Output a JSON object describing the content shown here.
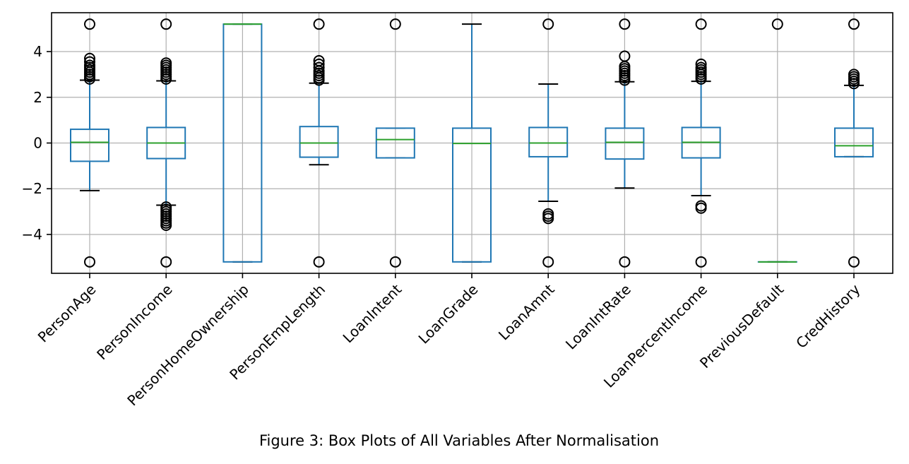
{
  "chart_data": {
    "type": "box",
    "title": "",
    "xlabel": "",
    "ylabel": "",
    "ylim": [
      -5.7,
      5.7
    ],
    "yticks": [
      -4,
      -2,
      0,
      2,
      4
    ],
    "ytick_labels": [
      "−4",
      "−2",
      "0",
      "2",
      "4"
    ],
    "grid": true,
    "colors": {
      "box": "#1f77b4",
      "median": "#2ca02c",
      "whisker_cap": "#000000",
      "grid": "#b0b0b0"
    },
    "categories": [
      "PersonAge",
      "PersonIncome",
      "PersonHomeOwnership",
      "PersonEmpLength",
      "LoanIntent",
      "LoanGrade",
      "LoanAmnt",
      "LoanIntRate",
      "LoanPercentIncome",
      "PreviousDefault",
      "CredHistory"
    ],
    "boxes": [
      {
        "q1": -0.8,
        "median": 0.03,
        "q3": 0.6,
        "whisker_low": -2.08,
        "whisker_high": 2.75,
        "outliers": [
          -5.2,
          5.2,
          2.8,
          2.9,
          3.0,
          3.1,
          3.2,
          3.3,
          3.4,
          3.55,
          3.7
        ]
      },
      {
        "q1": -0.68,
        "median": 0.0,
        "q3": 0.68,
        "whisker_low": -2.72,
        "whisker_high": 2.72,
        "outliers": [
          -5.2,
          5.2,
          2.8,
          2.9,
          3.0,
          3.1,
          3.2,
          3.3,
          3.4,
          3.5,
          -2.8,
          -2.9,
          -3.0,
          -3.1,
          -3.2,
          -3.3,
          -3.4,
          -3.5,
          -3.6
        ]
      },
      {
        "q1": -5.2,
        "median": 5.2,
        "q3": 5.2,
        "whisker_low": -5.2,
        "whisker_high": 5.2,
        "outliers": []
      },
      {
        "q1": -0.62,
        "median": 0.0,
        "q3": 0.72,
        "whisker_low": -0.95,
        "whisker_high": 2.62,
        "outliers": [
          -5.2,
          5.2,
          2.75,
          2.85,
          2.95,
          3.05,
          3.15,
          3.3,
          3.45,
          3.6
        ]
      },
      {
        "q1": -0.65,
        "median": 0.15,
        "q3": 0.65,
        "whisker_low": -0.65,
        "whisker_high": 0.65,
        "outliers": [
          -5.2,
          5.2
        ]
      },
      {
        "q1": -5.2,
        "median": -0.02,
        "q3": 0.65,
        "whisker_low": -5.2,
        "whisker_high": 5.2,
        "outliers": []
      },
      {
        "q1": -0.6,
        "median": 0.0,
        "q3": 0.68,
        "whisker_low": -2.55,
        "whisker_high": 2.58,
        "outliers": [
          -5.2,
          5.2,
          -3.1,
          -3.2,
          -3.3
        ]
      },
      {
        "q1": -0.7,
        "median": 0.03,
        "q3": 0.65,
        "whisker_low": -1.97,
        "whisker_high": 2.68,
        "outliers": [
          -5.2,
          5.2,
          2.75,
          2.85,
          2.95,
          3.05,
          3.15,
          3.25,
          3.35,
          3.8
        ]
      },
      {
        "q1": -0.65,
        "median": 0.03,
        "q3": 0.68,
        "whisker_low": -2.3,
        "whisker_high": 2.7,
        "outliers": [
          -5.2,
          5.2,
          2.8,
          2.9,
          3.0,
          3.1,
          3.2,
          3.3,
          3.45,
          -2.75,
          -2.85
        ]
      },
      {
        "q1": -5.2,
        "median": -5.2,
        "q3": -5.2,
        "whisker_low": -5.2,
        "whisker_high": -5.2,
        "outliers": [
          5.2
        ]
      },
      {
        "q1": -0.6,
        "median": -0.12,
        "q3": 0.65,
        "whisker_low": -0.6,
        "whisker_high": 2.52,
        "outliers": [
          -5.2,
          5.2,
          2.6,
          2.7,
          2.8,
          2.9,
          3.0
        ]
      }
    ]
  },
  "caption": "Figure 3: Box Plots of All Variables After Normalisation"
}
